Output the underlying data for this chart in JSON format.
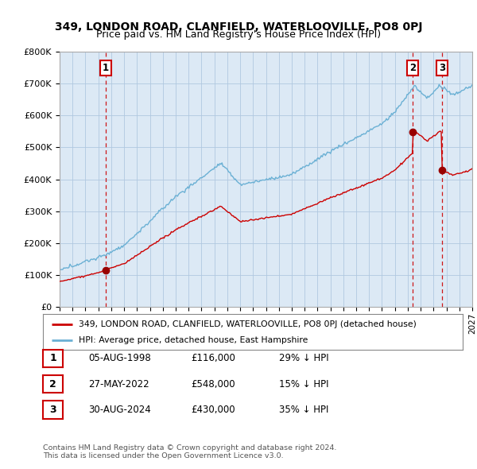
{
  "title": "349, LONDON ROAD, CLANFIELD, WATERLOOVILLE, PO8 0PJ",
  "subtitle": "Price paid vs. HM Land Registry's House Price Index (HPI)",
  "background_color": "#ffffff",
  "plot_background": "#dce9f5",
  "grid_color": "#b0c8e0",
  "sale_color": "#cc0000",
  "hpi_color": "#6ab0d4",
  "sale_dates": [
    1998.59,
    2022.4,
    2024.66
  ],
  "sale_prices": [
    116000,
    548000,
    430000
  ],
  "sale_labels": [
    "1",
    "2",
    "3"
  ],
  "legend_sale": "349, LONDON ROAD, CLANFIELD, WATERLOOVILLE, PO8 0PJ (detached house)",
  "legend_hpi": "HPI: Average price, detached house, East Hampshire",
  "table": [
    {
      "num": "1",
      "date": "05-AUG-1998",
      "price": "£116,000",
      "note": "29% ↓ HPI"
    },
    {
      "num": "2",
      "date": "27-MAY-2022",
      "price": "£548,000",
      "note": "15% ↓ HPI"
    },
    {
      "num": "3",
      "date": "30-AUG-2024",
      "price": "£430,000",
      "note": "35% ↓ HPI"
    }
  ],
  "footer1": "Contains HM Land Registry data © Crown copyright and database right 2024.",
  "footer2": "This data is licensed under the Open Government Licence v3.0.",
  "xmin": 1995,
  "xmax": 2027,
  "ymin": 0,
  "ymax": 800000
}
